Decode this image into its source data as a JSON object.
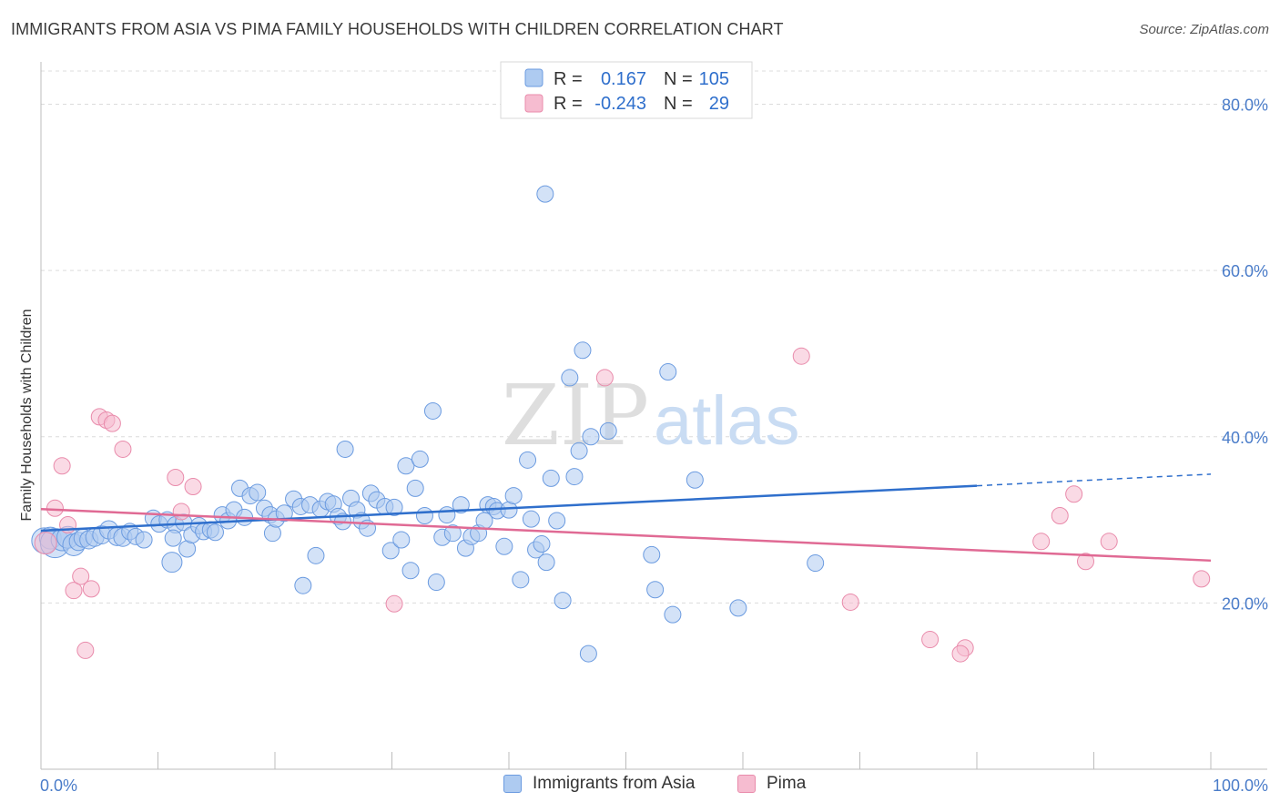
{
  "title": "IMMIGRANTS FROM ASIA VS PIMA FAMILY HOUSEHOLDS WITH CHILDREN CORRELATION CHART",
  "source": "Source: ZipAtlas.com",
  "watermark": {
    "zip": "ZIP",
    "atlas": "atlas"
  },
  "colors": {
    "blue_fill": "#aecbf1",
    "blue_stroke": "#6b9be0",
    "blue_line": "#2f6fcc",
    "pink_fill": "#f6bcd0",
    "pink_stroke": "#e98bab",
    "pink_line": "#e06a94",
    "tick_text": "#4a7cc9",
    "grid": "#dcdcdc"
  },
  "legend": {
    "rows": [
      {
        "r_label": "R =",
        "r_value": "0.167",
        "n_label": "N =",
        "n_value": "105"
      },
      {
        "r_label": "R =",
        "r_value": "-0.243",
        "n_label": "N =",
        "n_value": "29"
      }
    ]
  },
  "chart_data": {
    "type": "scatter",
    "title": "IMMIGRANTS FROM ASIA VS PIMA FAMILY HOUSEHOLDS WITH CHILDREN CORRELATION CHART",
    "xlabel": "",
    "ylabel": "Family Households with Children",
    "xlim": [
      0,
      100
    ],
    "ylim": [
      0,
      84
    ],
    "x_tick_labels": [
      "0.0%",
      "100.0%"
    ],
    "y_ticks": [
      20,
      40,
      60,
      80
    ],
    "y_tick_labels": [
      "20.0%",
      "40.0%",
      "60.0%",
      "80.0%"
    ],
    "grid": true,
    "legend_position": "top-center",
    "series": [
      {
        "name": "Immigrants from Asia",
        "trend": {
          "x0": 0,
          "y0": 28.7,
          "x1": 80,
          "y1": 34.1,
          "dash_to_x": 100,
          "dash_to_y": 35.5
        },
        "points": [
          [
            0.3,
            27.5,
            14
          ],
          [
            0.8,
            27.8,
            12
          ],
          [
            1.2,
            27.2,
            16
          ],
          [
            1.8,
            27.6,
            12
          ],
          [
            2.3,
            27.9,
            12
          ],
          [
            2.8,
            27.0,
            12
          ],
          [
            3.2,
            27.4,
            10
          ],
          [
            3.6,
            27.8,
            10
          ],
          [
            4.1,
            27.6,
            10
          ],
          [
            4.6,
            27.9,
            10
          ],
          [
            5.2,
            28.2,
            10
          ],
          [
            5.8,
            28.8,
            10
          ],
          [
            6.5,
            28.0,
            10
          ],
          [
            7.0,
            27.9,
            10
          ],
          [
            7.6,
            28.6,
            9
          ],
          [
            8.1,
            28.0,
            9
          ],
          [
            8.8,
            27.6,
            9
          ],
          [
            9.6,
            30.2,
            9
          ],
          [
            10.1,
            29.5,
            9
          ],
          [
            10.8,
            30.0,
            9
          ],
          [
            11.5,
            29.4,
            9
          ],
          [
            12.2,
            29.7,
            9
          ],
          [
            11.2,
            24.9,
            11
          ],
          [
            11.3,
            27.8,
            9
          ],
          [
            12.5,
            26.5,
            9
          ],
          [
            12.9,
            28.2,
            9
          ],
          [
            13.5,
            29.3,
            9
          ],
          [
            13.9,
            28.6,
            9
          ],
          [
            14.5,
            28.8,
            9
          ],
          [
            14.9,
            28.5,
            9
          ],
          [
            15.5,
            30.6,
            9
          ],
          [
            16.0,
            29.9,
            9
          ],
          [
            16.5,
            31.2,
            9
          ],
          [
            17.0,
            33.8,
            9
          ],
          [
            17.4,
            30.3,
            9
          ],
          [
            17.9,
            32.9,
            9
          ],
          [
            18.5,
            33.3,
            9
          ],
          [
            19.1,
            31.4,
            9
          ],
          [
            19.6,
            30.6,
            9
          ],
          [
            19.8,
            28.4,
            9
          ],
          [
            20.1,
            30.1,
            9
          ],
          [
            20.8,
            30.8,
            9
          ],
          [
            21.6,
            32.5,
            9
          ],
          [
            22.2,
            31.6,
            9
          ],
          [
            22.4,
            22.1,
            9
          ],
          [
            23.0,
            31.8,
            9
          ],
          [
            23.5,
            25.7,
            9
          ],
          [
            23.9,
            31.3,
            9
          ],
          [
            24.5,
            32.2,
            9
          ],
          [
            25.0,
            31.9,
            9
          ],
          [
            25.4,
            30.4,
            9
          ],
          [
            25.8,
            29.8,
            9
          ],
          [
            26.0,
            38.5,
            9
          ],
          [
            26.5,
            32.6,
            9
          ],
          [
            27.0,
            31.2,
            9
          ],
          [
            27.4,
            29.9,
            9
          ],
          [
            27.9,
            29.0,
            9
          ],
          [
            28.2,
            33.2,
            9
          ],
          [
            28.7,
            32.4,
            9
          ],
          [
            29.4,
            31.6,
            9
          ],
          [
            29.9,
            26.3,
            9
          ],
          [
            30.2,
            31.5,
            9
          ],
          [
            30.8,
            27.6,
            9
          ],
          [
            31.2,
            36.5,
            9
          ],
          [
            31.6,
            23.9,
            9
          ],
          [
            32.0,
            33.8,
            9
          ],
          [
            32.4,
            37.3,
            9
          ],
          [
            32.8,
            30.5,
            9
          ],
          [
            33.5,
            43.1,
            9
          ],
          [
            33.8,
            22.5,
            9
          ],
          [
            34.3,
            27.9,
            9
          ],
          [
            34.7,
            30.6,
            9
          ],
          [
            35.2,
            28.4,
            9
          ],
          [
            35.9,
            31.8,
            9
          ],
          [
            36.3,
            26.6,
            9
          ],
          [
            36.8,
            28.0,
            9
          ],
          [
            37.4,
            28.4,
            9
          ],
          [
            37.9,
            29.9,
            9
          ],
          [
            38.2,
            31.8,
            9
          ],
          [
            38.7,
            31.6,
            9
          ],
          [
            39.0,
            31.1,
            9
          ],
          [
            39.6,
            26.8,
            9
          ],
          [
            40.0,
            31.2,
            9
          ],
          [
            40.4,
            32.9,
            9
          ],
          [
            41.0,
            22.8,
            9
          ],
          [
            41.6,
            37.2,
            9
          ],
          [
            41.9,
            30.1,
            9
          ],
          [
            42.3,
            26.4,
            9
          ],
          [
            42.8,
            27.1,
            9
          ],
          [
            43.2,
            24.9,
            9
          ],
          [
            43.6,
            35.0,
            9
          ],
          [
            44.1,
            29.9,
            9
          ],
          [
            44.6,
            20.3,
            9
          ],
          [
            45.2,
            47.1,
            9
          ],
          [
            45.6,
            35.2,
            9
          ],
          [
            46.0,
            38.3,
            9
          ],
          [
            46.3,
            50.4,
            9
          ],
          [
            46.8,
            13.9,
            9
          ],
          [
            43.1,
            69.2,
            9
          ],
          [
            47.0,
            40.0,
            9
          ],
          [
            48.5,
            40.7,
            9
          ],
          [
            52.2,
            25.8,
            9
          ],
          [
            52.5,
            21.6,
            9
          ],
          [
            53.6,
            47.8,
            9
          ],
          [
            54.0,
            18.6,
            9
          ],
          [
            55.9,
            34.8,
            9
          ],
          [
            59.6,
            19.4,
            9
          ],
          [
            66.2,
            24.8,
            9
          ]
        ]
      },
      {
        "name": "Pima",
        "trend": {
          "x0": 0,
          "y0": 31.3,
          "x1": 100,
          "y1": 25.1
        },
        "points": [
          [
            0.4,
            27.2,
            12
          ],
          [
            1.2,
            31.4,
            9
          ],
          [
            1.8,
            36.5,
            9
          ],
          [
            2.3,
            29.4,
            9
          ],
          [
            2.8,
            21.5,
            9
          ],
          [
            3.4,
            23.2,
            9
          ],
          [
            3.8,
            14.3,
            9
          ],
          [
            4.3,
            21.7,
            9
          ],
          [
            5.0,
            42.4,
            9
          ],
          [
            5.6,
            42.0,
            9
          ],
          [
            6.1,
            41.6,
            9
          ],
          [
            7.0,
            38.5,
            9
          ],
          [
            11.5,
            35.1,
            9
          ],
          [
            12.0,
            31.0,
            9
          ],
          [
            13.0,
            34.0,
            9
          ],
          [
            30.2,
            19.9,
            9
          ],
          [
            48.2,
            47.1,
            9
          ],
          [
            65.0,
            49.7,
            9
          ],
          [
            69.2,
            20.1,
            9
          ],
          [
            76.0,
            15.6,
            9
          ],
          [
            79.0,
            14.6,
            9
          ],
          [
            78.6,
            13.9,
            9
          ],
          [
            85.5,
            27.4,
            9
          ],
          [
            87.1,
            30.5,
            9
          ],
          [
            88.3,
            33.1,
            9
          ],
          [
            89.3,
            25.0,
            9
          ],
          [
            91.3,
            27.4,
            9
          ],
          [
            99.2,
            22.9,
            9
          ]
        ]
      }
    ]
  },
  "bottom_legend": [
    "Immigrants from Asia",
    "Pima"
  ]
}
